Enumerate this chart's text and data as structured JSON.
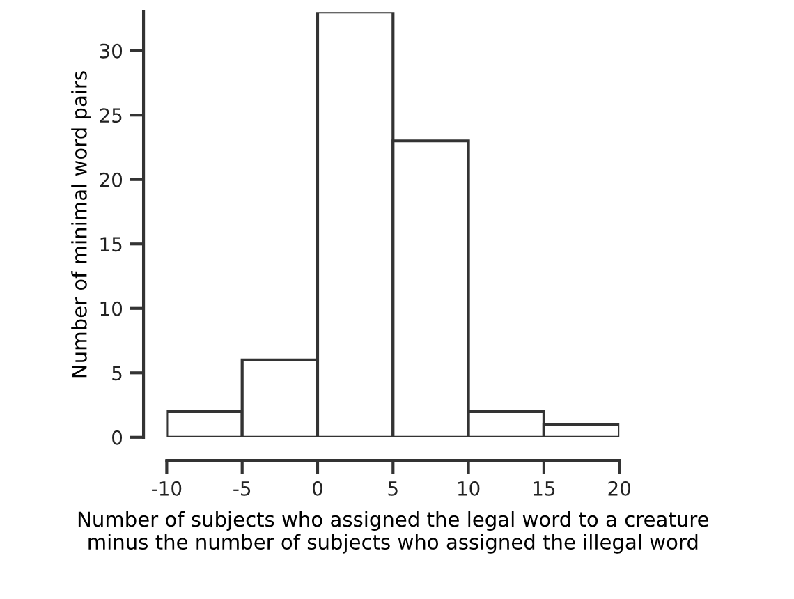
{
  "chart_data": {
    "type": "histogram",
    "xlabel": "Number of subjects who assigned the legal word to a creature\nminus the number of subjects who assigned the illegal word",
    "ylabel": "Number of minimal word pairs",
    "bins": [
      -10,
      -5,
      0,
      5,
      10,
      15,
      20
    ],
    "values": [
      2,
      6,
      33,
      23,
      2,
      1
    ],
    "color": "#ffffff",
    "xlim": [
      -10,
      20
    ],
    "xticks": [
      -10,
      -5,
      0,
      5,
      10,
      15,
      20
    ],
    "ylim": [
      0,
      33
    ],
    "yticks": [
      0,
      5,
      10,
      15,
      20,
      25,
      30
    ],
    "grid": false
  }
}
